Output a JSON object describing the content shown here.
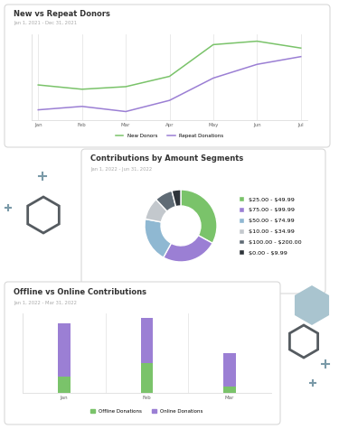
{
  "chart_data": [
    {
      "type": "line",
      "title": "New vs Repeat Donors",
      "subtitle": "Jan 1, 2021 - Dec 31, 2021",
      "categories": [
        "Jan",
        "Feb",
        "Mar",
        "Apr",
        "May",
        "Jun",
        "Jul"
      ],
      "series": [
        {
          "name": "New Donors",
          "color": "#7ac36a",
          "values": [
            41,
            36,
            39,
            51,
            88,
            92,
            84
          ]
        },
        {
          "name": "Repeat Donations",
          "color": "#9b7fd4",
          "values": [
            12,
            16,
            10,
            23,
            49,
            65,
            74
          ]
        }
      ],
      "ylim": [
        0,
        100
      ],
      "grid": true,
      "tick_labels": "x",
      "legend": "lower center"
    },
    {
      "type": "pie",
      "title": "Contributions by Amount Segments",
      "subtitle": "Jan 1, 2022 - Jun 31, 2022",
      "categories": [
        "$25.00 - $49.99",
        "$75.00 - $99.99",
        "$50.00 - $74.99",
        "$10.00 - $34.99",
        "$100.00 - $200.00",
        "$0.00 - $9.99"
      ],
      "values": [
        33,
        25,
        20,
        10,
        8,
        4
      ],
      "colors": [
        "#7ac36a",
        "#9b7fd4",
        "#8fb8d2",
        "#c3c8cd",
        "#5f6b75",
        "#2e343a"
      ],
      "legend": "center left"
    },
    {
      "type": "bar",
      "title": "Offline vs Online Contributions",
      "subtitle": "Jan 1, 2022 - Mar 31, 2022",
      "categories": [
        "Jan",
        "Feb",
        "Mar"
      ],
      "stacked": true,
      "series": [
        {
          "name": "Offline Donations",
          "color": "#7ac36a",
          "values": [
            20,
            38,
            8
          ]
        },
        {
          "name": "Online Donations",
          "color": "#9b7fd4",
          "values": [
            67,
            56,
            42
          ]
        }
      ],
      "ylim": [
        0,
        100
      ],
      "grid": true,
      "tick_labels": "x",
      "legend": "lower center"
    }
  ]
}
